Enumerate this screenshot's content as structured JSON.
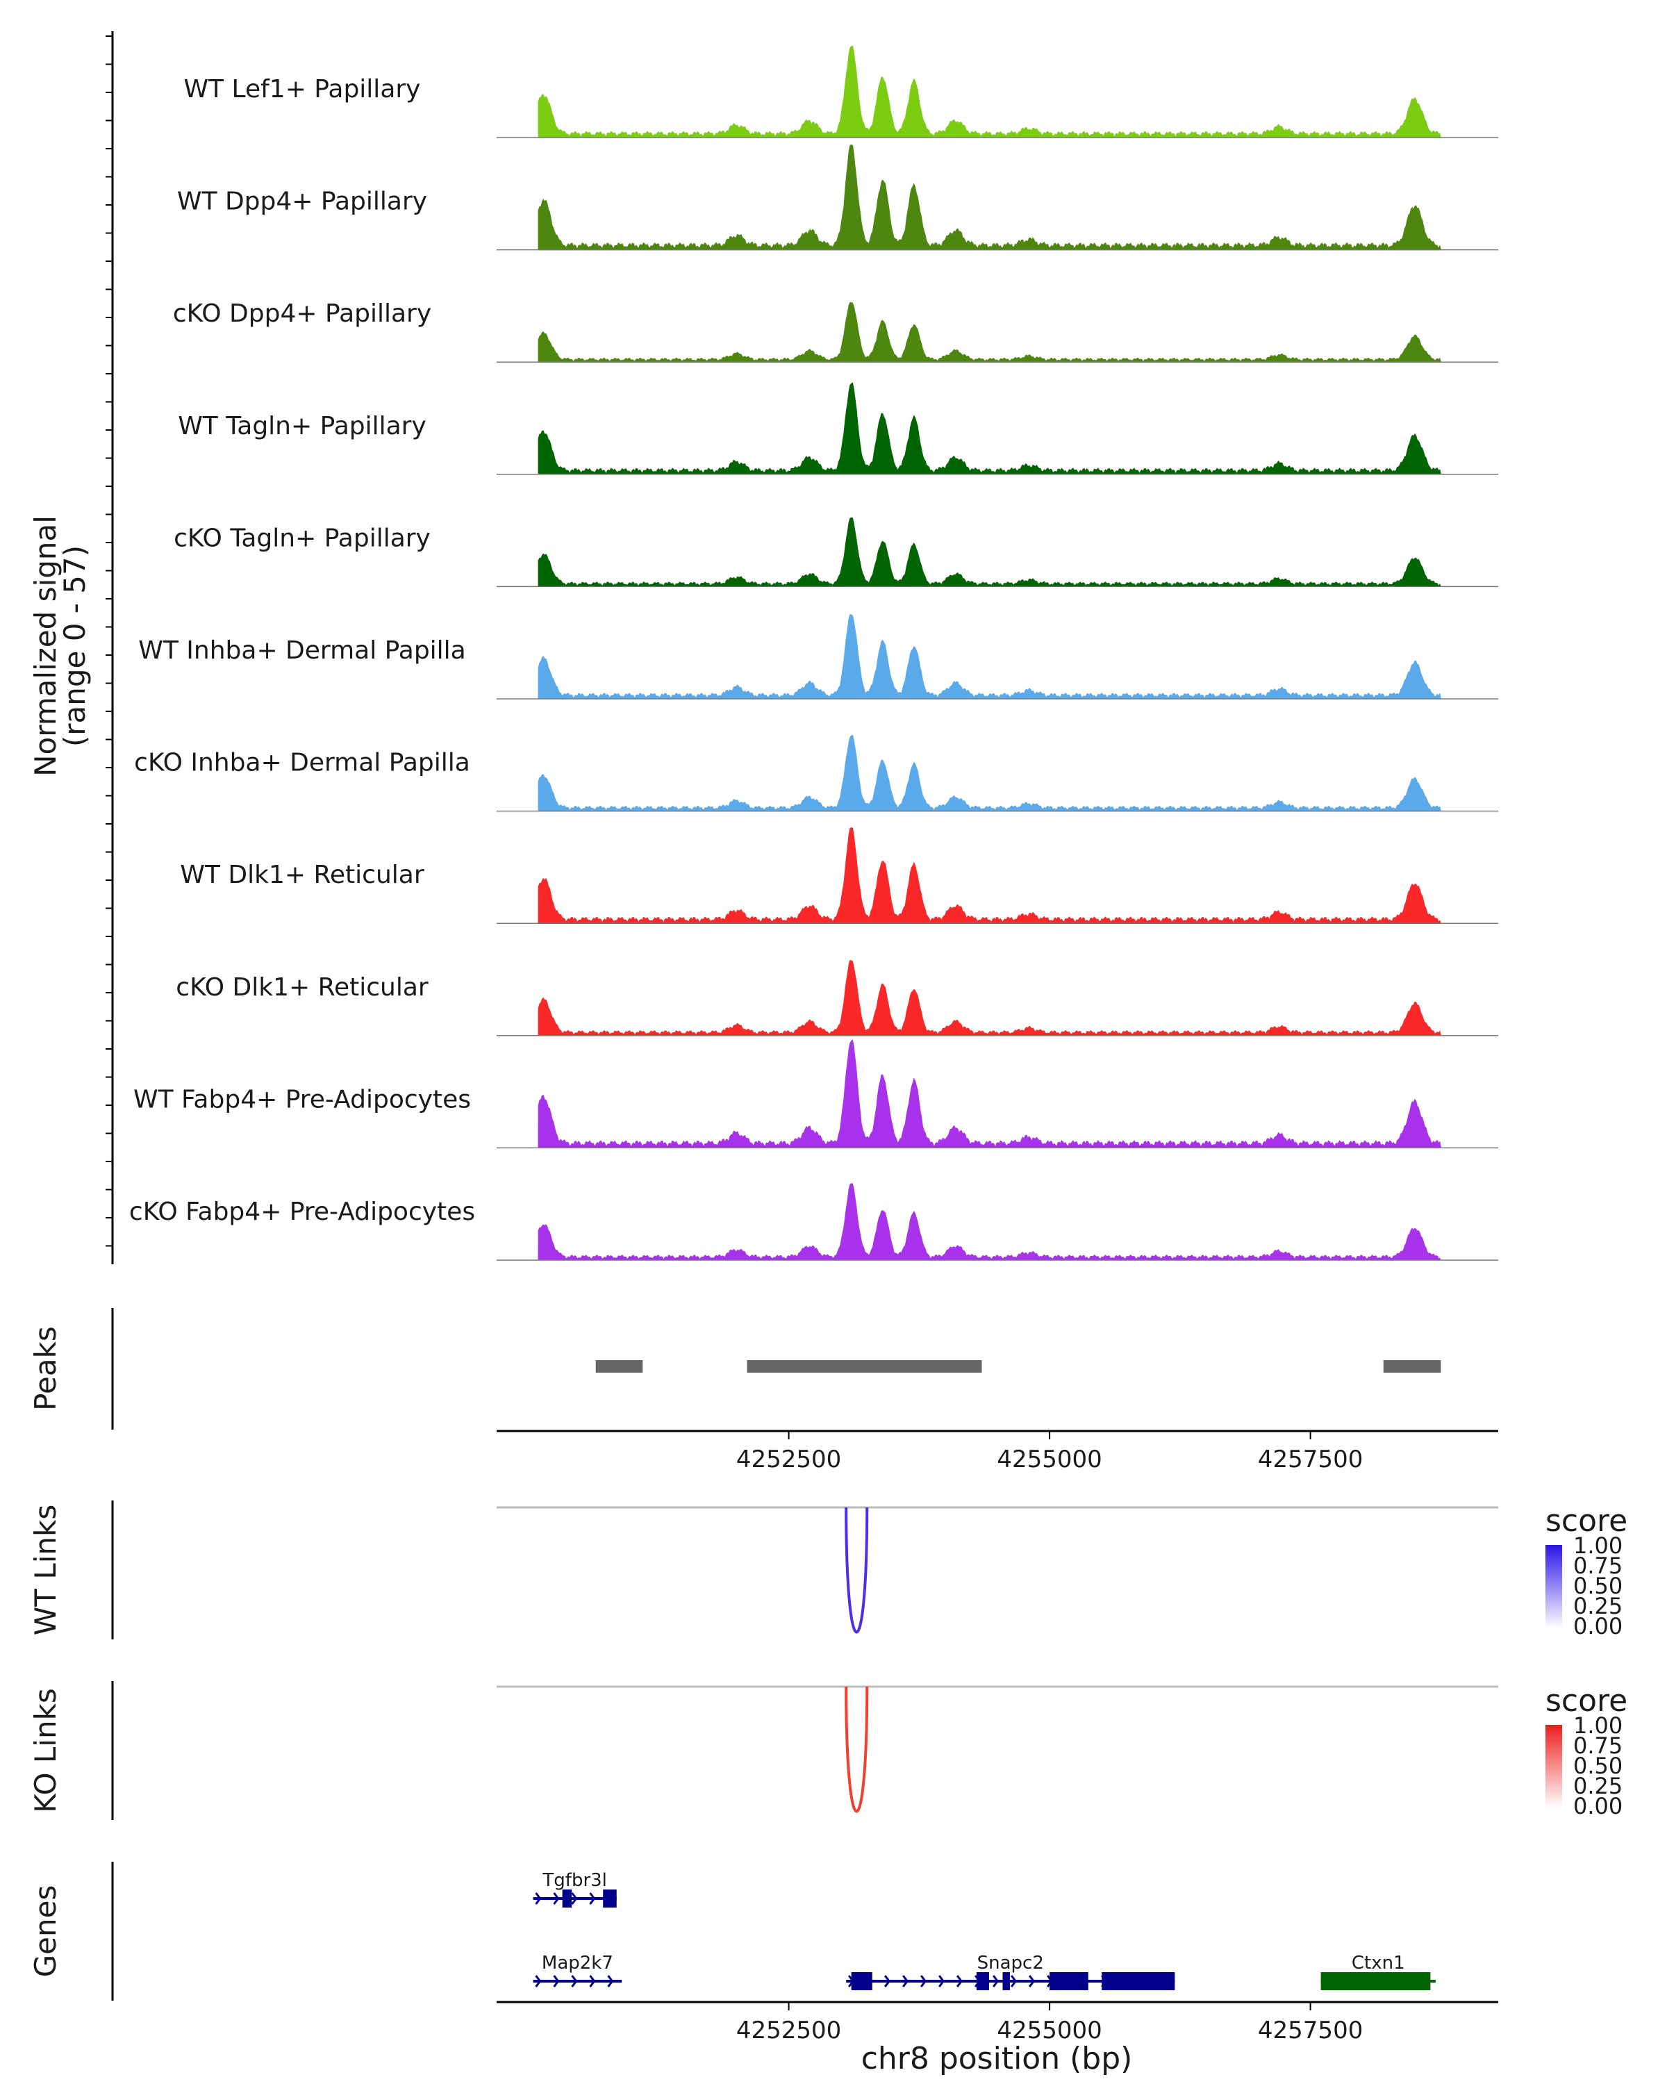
{
  "chart_data": {
    "type": "area",
    "title": "",
    "ylabel_line1": "Normalized signal",
    "ylabel_line2": "(range 0 - 57)",
    "xlabel": "chr8 position (bp)",
    "x_range": [
      4249700,
      4259300
    ],
    "y_range": [
      0,
      57
    ],
    "x_ticks": [
      4252500,
      4255000,
      4257500
    ],
    "x_tick_labels": [
      "4252500",
      "4255000",
      "4257500"
    ],
    "coverage_peak_shape": [
      {
        "pos": 4250150,
        "rel": 0.45
      },
      {
        "pos": 4252000,
        "rel": 0.1
      },
      {
        "pos": 4252700,
        "rel": 0.15
      },
      {
        "pos": 4253100,
        "rel": 1.0
      },
      {
        "pos": 4253400,
        "rel": 0.65
      },
      {
        "pos": 4253700,
        "rel": 0.6
      },
      {
        "pos": 4254100,
        "rel": 0.15
      },
      {
        "pos": 4254800,
        "rel": 0.06
      },
      {
        "pos": 4257200,
        "rel": 0.08
      },
      {
        "pos": 4258500,
        "rel": 0.4
      }
    ],
    "series": [
      {
        "name": "WT Lef1+ Papillary",
        "color": "#7CCD12",
        "max": 48
      },
      {
        "name": "WT Dpp4+ Papillary",
        "color": "#4E870F",
        "max": 55
      },
      {
        "name": "cKO Dpp4+ Papillary",
        "color": "#4E870F",
        "max": 32
      },
      {
        "name": "WT Tagln+ Papillary",
        "color": "#006400",
        "max": 48
      },
      {
        "name": "cKO Tagln+ Papillary",
        "color": "#006400",
        "max": 36
      },
      {
        "name": "WT Inhba+ Dermal Papilla",
        "color": "#5AAAEB",
        "max": 45
      },
      {
        "name": "cKO Inhba+ Dermal Papilla",
        "color": "#5AAAEB",
        "max": 40
      },
      {
        "name": "WT Dlk1+ Reticular",
        "color": "#FA2828",
        "max": 50
      },
      {
        "name": "cKO Dlk1+ Reticular",
        "color": "#FA2828",
        "max": 40
      },
      {
        "name": "WT Fabp4+ Pre-Adipocytes",
        "color": "#A832EC",
        "max": 57
      },
      {
        "name": "cKO Fabp4+ Pre-Adipocytes",
        "color": "#A832EC",
        "max": 40
      }
    ],
    "peaks": {
      "label": "Peaks",
      "color": "#666666",
      "regions": [
        [
          4250650,
          4251100
        ],
        [
          4252100,
          4254350
        ],
        [
          4258200,
          4258750
        ]
      ]
    },
    "links": [
      {
        "label": "WT Links",
        "color": "#4B2EE8",
        "start": 4253050,
        "end": 4253250,
        "score": 1.0,
        "legend_title": "score",
        "legend_values": [
          "1.00",
          "0.75",
          "0.50",
          "0.25",
          "0.00"
        ],
        "legend_high": "#2B14E8"
      },
      {
        "label": "KO Links",
        "color": "#F04030",
        "start": 4253050,
        "end": 4253250,
        "score": 1.0,
        "legend_title": "score",
        "legend_values": [
          "1.00",
          "0.75",
          "0.50",
          "0.25",
          "0.00"
        ],
        "legend_high": "#EE1E1E"
      }
    ],
    "genes": {
      "label": "Genes",
      "items": [
        {
          "name": "Tgfbr3l",
          "start": 4250050,
          "end": 4250850,
          "strand": "+",
          "color": "#00008B",
          "row": 0,
          "exons": [
            [
              4250330,
              4250420
            ],
            [
              4250720,
              4250850
            ]
          ]
        },
        {
          "name": "Map2k7",
          "start": 4250050,
          "end": 4250900,
          "strand": "+",
          "color": "#00008B",
          "row": 1,
          "exons": []
        },
        {
          "name": "Snapc2",
          "start": 4253050,
          "end": 4256200,
          "strand": "+",
          "color": "#00008B",
          "row": 1,
          "exons": [
            [
              4253100,
              4253300
            ],
            [
              4254300,
              4254420
            ],
            [
              4254550,
              4254620
            ],
            [
              4255000,
              4255370
            ],
            [
              4255500,
              4256200
            ]
          ]
        },
        {
          "name": "Ctxn1",
          "start": 4257600,
          "end": 4258700,
          "strand": "-",
          "color": "#006400",
          "row": 1,
          "exons": [
            [
              4257600,
              4258650
            ]
          ]
        }
      ]
    }
  }
}
